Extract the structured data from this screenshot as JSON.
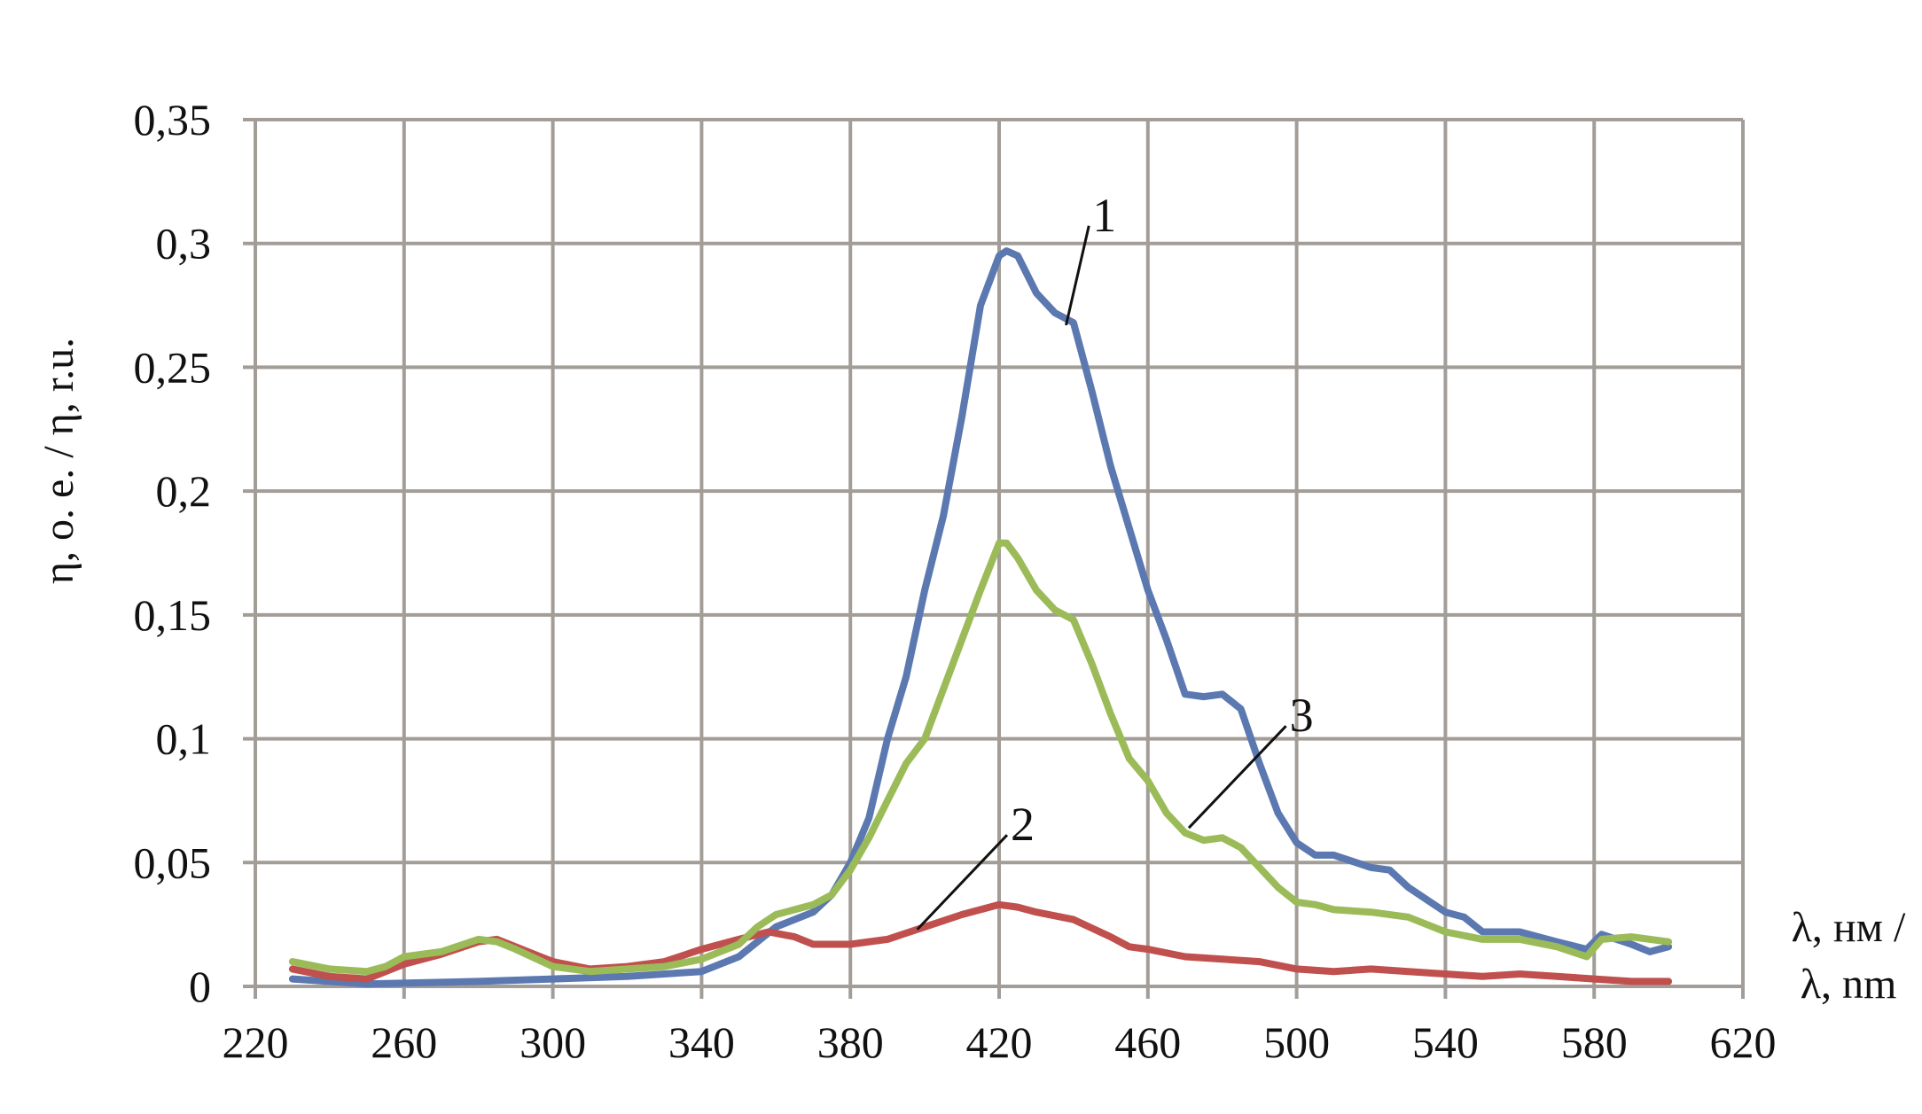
{
  "chart_data": {
    "type": "line",
    "title": "",
    "xlabel_lines": [
      "λ, нм /",
      "λ, nm"
    ],
    "ylabel": "η, o. e. / η, r.u.",
    "xlim": [
      220,
      620
    ],
    "ylim": [
      0,
      0.35
    ],
    "grid": true,
    "x_ticks": [
      220,
      260,
      300,
      340,
      380,
      420,
      460,
      500,
      540,
      580,
      620
    ],
    "x_tick_labels": [
      "220",
      "260",
      "300",
      "340",
      "380",
      "420",
      "460",
      "500",
      "540",
      "580",
      "620"
    ],
    "y_ticks": [
      0,
      0.05,
      0.1,
      0.15,
      0.2,
      0.25,
      0.3,
      0.35
    ],
    "y_tick_labels": [
      "0",
      "0,05",
      "0,1",
      "0,15",
      "0,2",
      "0,25",
      "0,3",
      "0,35"
    ],
    "colors": {
      "grid": "#a39d98",
      "series1": "#5b78b0",
      "series2": "#c0504d",
      "series3": "#9bbb59"
    },
    "series": [
      {
        "label": "1",
        "color": "#5b78b0",
        "x": [
          230,
          250,
          280,
          300,
          320,
          340,
          350,
          360,
          370,
          375,
          380,
          385,
          390,
          395,
          400,
          405,
          410,
          415,
          420,
          422,
          425,
          430,
          435,
          440,
          445,
          450,
          455,
          460,
          465,
          470,
          475,
          480,
          485,
          490,
          495,
          500,
          505,
          510,
          520,
          525,
          530,
          540,
          545,
          550,
          560,
          570,
          578,
          582,
          590,
          595,
          600
        ],
        "y": [
          0.003,
          0.001,
          0.002,
          0.003,
          0.004,
          0.006,
          0.012,
          0.024,
          0.03,
          0.037,
          0.05,
          0.068,
          0.1,
          0.125,
          0.16,
          0.19,
          0.23,
          0.275,
          0.295,
          0.297,
          0.295,
          0.28,
          0.272,
          0.268,
          0.24,
          0.21,
          0.185,
          0.16,
          0.14,
          0.118,
          0.117,
          0.118,
          0.112,
          0.09,
          0.07,
          0.058,
          0.053,
          0.053,
          0.048,
          0.047,
          0.04,
          0.03,
          0.028,
          0.022,
          0.022,
          0.018,
          0.015,
          0.021,
          0.017,
          0.014,
          0.016
        ]
      },
      {
        "label": "2",
        "color": "#c0504d",
        "x": [
          230,
          240,
          250,
          260,
          270,
          280,
          285,
          290,
          300,
          310,
          320,
          330,
          340,
          350,
          358,
          365,
          370,
          380,
          390,
          400,
          410,
          420,
          425,
          430,
          440,
          450,
          455,
          460,
          470,
          480,
          490,
          500,
          510,
          520,
          530,
          540,
          550,
          560,
          570,
          580,
          590,
          600
        ],
        "y": [
          0.007,
          0.004,
          0.003,
          0.009,
          0.013,
          0.018,
          0.019,
          0.016,
          0.01,
          0.007,
          0.008,
          0.01,
          0.015,
          0.019,
          0.022,
          0.02,
          0.017,
          0.017,
          0.019,
          0.024,
          0.029,
          0.033,
          0.032,
          0.03,
          0.027,
          0.02,
          0.016,
          0.015,
          0.012,
          0.011,
          0.01,
          0.007,
          0.006,
          0.007,
          0.006,
          0.005,
          0.004,
          0.005,
          0.004,
          0.003,
          0.002,
          0.002
        ]
      },
      {
        "label": "3",
        "color": "#9bbb59",
        "x": [
          230,
          240,
          250,
          255,
          260,
          270,
          280,
          285,
          290,
          300,
          310,
          320,
          330,
          340,
          350,
          355,
          360,
          365,
          370,
          375,
          380,
          385,
          390,
          395,
          400,
          405,
          410,
          415,
          420,
          422,
          425,
          430,
          435,
          440,
          445,
          450,
          455,
          460,
          465,
          470,
          475,
          480,
          485,
          490,
          495,
          500,
          505,
          510,
          520,
          530,
          540,
          550,
          560,
          570,
          578,
          582,
          590,
          600
        ],
        "y": [
          0.01,
          0.007,
          0.006,
          0.008,
          0.012,
          0.014,
          0.019,
          0.018,
          0.015,
          0.008,
          0.006,
          0.007,
          0.008,
          0.011,
          0.017,
          0.024,
          0.029,
          0.031,
          0.033,
          0.037,
          0.047,
          0.06,
          0.075,
          0.09,
          0.1,
          0.12,
          0.14,
          0.16,
          0.179,
          0.179,
          0.173,
          0.16,
          0.152,
          0.148,
          0.13,
          0.11,
          0.092,
          0.083,
          0.07,
          0.062,
          0.059,
          0.06,
          0.056,
          0.048,
          0.04,
          0.034,
          0.033,
          0.031,
          0.03,
          0.028,
          0.022,
          0.019,
          0.019,
          0.016,
          0.012,
          0.019,
          0.02,
          0.018
        ]
      }
    ],
    "annotations": [
      {
        "text": "1",
        "points_to": [
          438,
          0.267
        ],
        "label_at": [
          447,
          0.31
        ]
      },
      {
        "text": "2",
        "points_to": [
          398,
          0.023
        ],
        "label_at": [
          425,
          0.064
        ]
      },
      {
        "text": "3",
        "points_to": [
          471,
          0.064
        ],
        "label_at": [
          500,
          0.108
        ]
      }
    ]
  }
}
